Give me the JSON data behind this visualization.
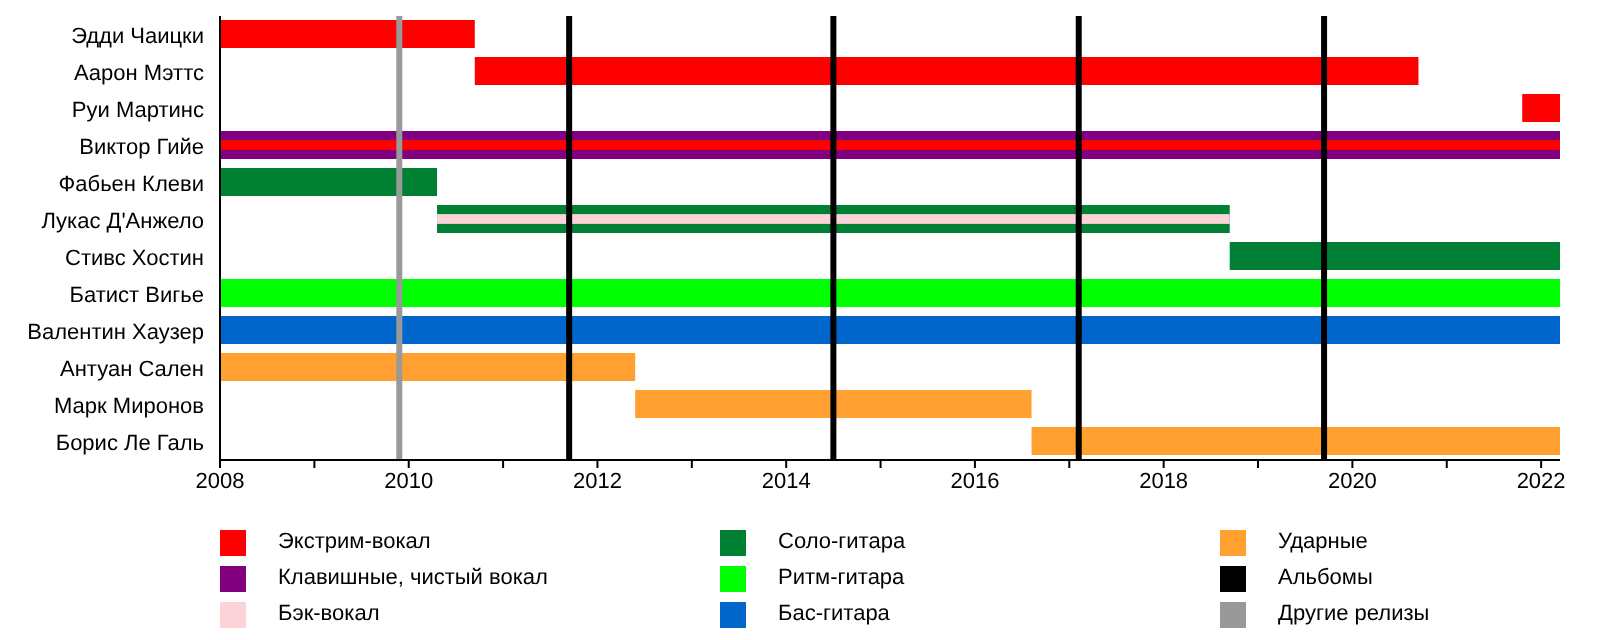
{
  "chart_data": {
    "type": "bar",
    "orientation": "horizontal",
    "legend": "bottom",
    "categories": [
      "Эдди Чаицки",
      "Аарон Мэттс",
      "Руи Мартинс",
      "Виктор Гийе",
      "Фабьен Клеви",
      "Лукас Д'Анжело",
      "Стивс Хостин",
      "Батист Вигье",
      "Валентин Хаузер",
      "Антуан Сален",
      "Марк Миронов",
      "Борис Ле Галь"
    ],
    "xlim": [
      2008,
      2022.2
    ],
    "xticks": [
      2008,
      {
        "value": 2009,
        "label": null
      },
      2010,
      {
        "value": 2011,
        "label": null
      },
      2012,
      {
        "value": 2013,
        "label": null
      },
      2014,
      {
        "value": 2015,
        "label": null
      },
      2016,
      {
        "value": 2017,
        "label": null
      },
      2018,
      {
        "value": 2019,
        "label": null
      },
      2020,
      {
        "value": 2021,
        "label": null
      },
      2022
    ],
    "series": [
      {
        "name": "Экстрим-вокал",
        "color": "#ff0000",
        "values": [
          2.7,
          10.0,
          0.4,
          14.2,
          null,
          null,
          null,
          null,
          null,
          null,
          null,
          null
        ],
        "base": [
          2008,
          2010.7,
          2021.8,
          2008,
          null,
          null,
          null,
          null,
          null,
          null,
          null,
          null
        ]
      },
      {
        "name": "Клавишные, чистый вокал",
        "color": "#800080",
        "values": [
          null,
          null,
          null,
          14.2,
          null,
          null,
          null,
          null,
          null,
          null,
          null,
          null
        ],
        "base": [
          null,
          null,
          null,
          2008,
          null,
          null,
          null,
          null,
          null,
          null,
          null,
          null
        ]
      },
      {
        "name": "Бэк-вокал",
        "color": "#fbd3d8",
        "values": [
          null,
          null,
          null,
          null,
          null,
          8.4,
          null,
          null,
          null,
          null,
          null,
          null
        ],
        "base": [
          null,
          null,
          null,
          null,
          null,
          2010.3,
          null,
          null,
          null,
          null,
          null,
          null
        ]
      },
      {
        "name": "Соло-гитара",
        "color": "#008033",
        "values": [
          null,
          null,
          null,
          null,
          2.3,
          8.4,
          3.5,
          null,
          null,
          null,
          null,
          null
        ],
        "base": [
          null,
          null,
          null,
          null,
          2008,
          2010.3,
          2018.7,
          null,
          null,
          null,
          null,
          null
        ]
      },
      {
        "name": "Ритм-гитара",
        "color": "#00ff00",
        "values": [
          null,
          null,
          null,
          null,
          null,
          null,
          null,
          14.2,
          null,
          null,
          null,
          null
        ],
        "base": [
          null,
          null,
          null,
          null,
          null,
          null,
          null,
          2008,
          null,
          null,
          null,
          null
        ]
      },
      {
        "name": "Бас-гитара",
        "color": "#0066cc",
        "values": [
          null,
          null,
          null,
          null,
          null,
          null,
          null,
          null,
          14.2,
          null,
          null,
          null
        ],
        "base": [
          null,
          null,
          null,
          null,
          null,
          null,
          null,
          null,
          2008,
          null,
          null,
          null
        ]
      },
      {
        "name": "Ударные",
        "color": "#ffa030",
        "values": [
          null,
          null,
          null,
          null,
          null,
          null,
          null,
          null,
          null,
          4.4,
          4.2,
          5.6
        ],
        "base": [
          null,
          null,
          null,
          null,
          null,
          null,
          null,
          null,
          null,
          2008,
          2012.4,
          2016.6
        ]
      }
    ],
    "ref_lines": [
      {
        "axis": "x",
        "value": 2011.7,
        "color": "#000000",
        "label": "Альбомы"
      },
      {
        "axis": "x",
        "value": 2014.5,
        "color": "#000000"
      },
      {
        "axis": "x",
        "value": 2017.1,
        "color": "#000000"
      },
      {
        "axis": "x",
        "value": 2019.7,
        "color": "#000000"
      },
      {
        "axis": "x",
        "value": 2009.9,
        "color": "#999999",
        "label": "Другие релизы"
      }
    ]
  }
}
